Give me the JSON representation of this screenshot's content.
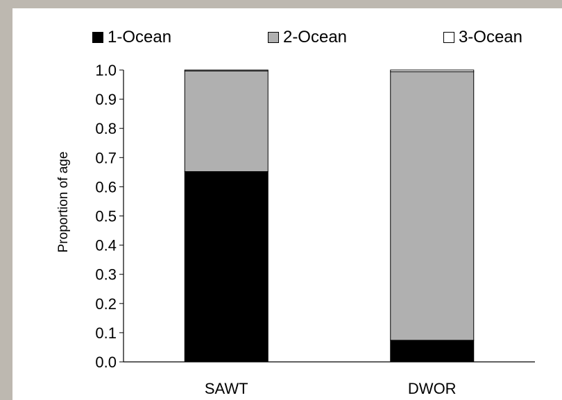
{
  "chart_data": {
    "type": "bar",
    "stacked": true,
    "categories": [
      "SAWT",
      "DWOR"
    ],
    "series": [
      {
        "name": "1-Ocean",
        "values": [
          0.652,
          0.074
        ],
        "color": "#000000"
      },
      {
        "name": "2-Ocean",
        "values": [
          0.345,
          0.92
        ],
        "color": "#b0b0b0"
      },
      {
        "name": "3-Ocean",
        "values": [
          0.003,
          0.006
        ],
        "color": "#ffffff"
      }
    ],
    "ylabel": "Proportion of age",
    "ylim": [
      0,
      1
    ],
    "yticks": [
      "0.0",
      "0.1",
      "0.2",
      "0.3",
      "0.4",
      "0.5",
      "0.6",
      "0.7",
      "0.8",
      "0.9",
      "1.0"
    ],
    "legend_position": "top",
    "grid": false
  }
}
